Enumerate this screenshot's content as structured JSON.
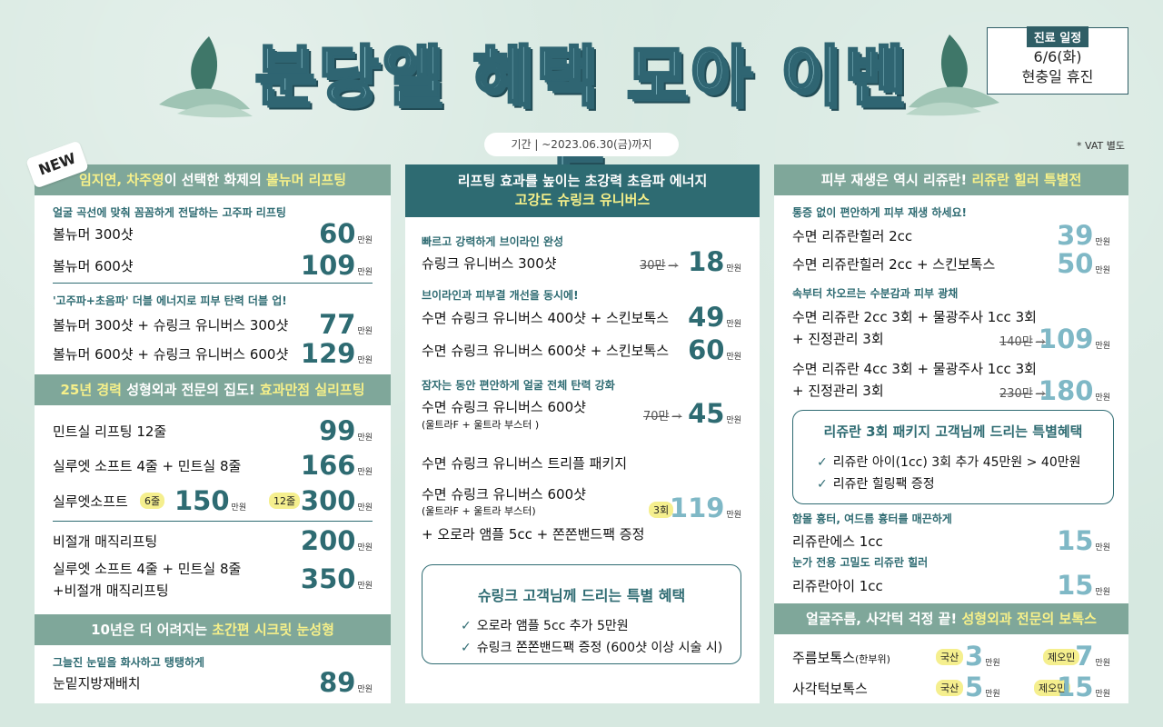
{
  "title": "분당엘 혜택 모아 이벤트",
  "period": "기간  |  ~2023.06.30(금)까지",
  "schedule": {
    "header": "진료 일정",
    "line1": "6/6(화)",
    "line2": "현충일 휴진"
  },
  "vat_note": "* VAT 별도",
  "new_badge": "NEW",
  "unit": "만원",
  "colors": {
    "accent": "#2e6b72",
    "header_bg": "#7fa79a",
    "highlight": "#f6f08a",
    "background": "#d6e8e0"
  },
  "col1": {
    "header1": {
      "a": "임지연, 차주영",
      "b": "이 선택한 화제의 ",
      "c": "볼뉴머 리프팅"
    },
    "sub1": "얼굴 곡선에 맞춰 꼼꼼하게 전달하는 고주파 리프팅",
    "items1": [
      {
        "name": "볼뉴머 300샷",
        "price": "60"
      },
      {
        "name": "볼뉴머 600샷",
        "price": "109"
      }
    ],
    "sub2": "'고주파+초음파' 더블 에너지로 피부 탄력 더블 업!",
    "items2": [
      {
        "name": "볼뉴머 300샷 + 슈링크 유니버스 300샷",
        "price": "77"
      },
      {
        "name": "볼뉴머 600샷 + 슈링크 유니버스 600샷",
        "price": "129"
      }
    ],
    "header2": {
      "a": "25년 경력 ",
      "b": "성형외과 전문의 집도! ",
      "c": "효과만점 실리프팅"
    },
    "items3": [
      {
        "name": "민트실 리프팅 12줄",
        "price": "99"
      },
      {
        "name": "실루엣 소프트 4줄 + 민트실 8줄",
        "price": "166"
      }
    ],
    "silhouette": {
      "name": "실루엣소프트",
      "tag1": "6줄",
      "price1": "150",
      "tag2": "12줄",
      "price2": "300"
    },
    "items4": [
      {
        "name": "비절개 매직리프팅",
        "price": "200"
      }
    ],
    "combo": {
      "line1": "실루엣 소프트 4줄 + 민트실 8줄",
      "line2": "+비절개 매직리프팅",
      "price": "350"
    },
    "header3": {
      "a": "10년은 더 어려지는 ",
      "b": "초간편 시크릿 눈성형"
    },
    "sub3": "그늘진 눈밑을 화사하고 탱탱하게",
    "items5": [
      {
        "name": "눈밑지방재배치",
        "price": "89"
      }
    ]
  },
  "col2": {
    "header_line1": "리프팅 효과를 높이는 초강력 초음파 에너지",
    "header_line2": "고강도 슈링크 유니버스",
    "sub1": "빠르고 강력하게 브이라인 완성",
    "item1": {
      "name": "슈링크 유니버스 300샷",
      "old": "30만",
      "price": "18"
    },
    "sub2": "브이라인과 피부결 개선을 동시에!",
    "item2": {
      "name": "수면  슈링크 유니버스 400샷  +  스킨보톡스",
      "price": "49"
    },
    "item3": {
      "name": "수면  슈링크 유니버스  600샷 +  스킨보톡스",
      "price": "60"
    },
    "sub3": "잠자는 동안 편안하게 얼굴 전체 탄력 강화",
    "item4": {
      "name": "수면  슈링크 유니버스  600샷",
      "note": "(울트라F  + 울트라 부스터 )",
      "old": "70만",
      "price": "45"
    },
    "item5": {
      "name": "수면  슈링크 유니버스  트리플 패키지"
    },
    "item6": {
      "name": "수면 슈링크 유니버스 600샷",
      "note": "(울트라F  + 울트라 부스터)",
      "extra": "+ 오로라  앰플  5cc +  쫀쫀밴드팩  증정",
      "tag": "3회",
      "price": "119"
    },
    "box": {
      "title": "슈링크 고객님께 드리는 특별 혜택",
      "lines": [
        "오로라  앰플  5cc 추가  5만원",
        "슈링크 쫀쫀밴드팩 증정 (600샷 이상 시술 시)"
      ]
    }
  },
  "col3": {
    "header1": {
      "a": "피부 재생은 역시 리쥬란! ",
      "b": "리쥬란 힐러 특별전"
    },
    "sub1": "통증 없이 편안하게 피부 재생 하세요!",
    "items1": [
      {
        "name": "수면 리쥬란힐러 2cc",
        "price": "39"
      },
      {
        "name": "수면 리쥬란힐러 2cc + 스킨보톡스",
        "price": "50"
      }
    ],
    "sub2": "속부터 차오르는 수분감과 피부 광채",
    "pkg1": {
      "line1": "수면 리쥬란 2cc 3회 + 물광주사  1cc 3회",
      "line2": "+ 진정관리 3회",
      "old": "140만",
      "price": "109"
    },
    "pkg2": {
      "line1": "수면 리쥬란 4cc 3회 + 물광주사  1cc 3회",
      "line2": "+ 진정관리 3회",
      "old": "230만",
      "price": "180"
    },
    "box": {
      "title": "리쥬란 3회 패키지 고객님께 드리는 특별혜택",
      "lines": [
        "리쥬란 아이(1cc) 3회 추가  45만원 > 40만원",
        "리쥬란 힐링팩 증정"
      ]
    },
    "sub3": "함몰 흉터, 여드름 흉터를 매끈하게",
    "item_s": {
      "name": "리쥬란에스 1cc",
      "price": "15"
    },
    "sub4": "눈가 전용 고밀도 리쥬란 힐러",
    "item_e": {
      "name": "리쥬란아이 1cc",
      "price": "15"
    },
    "header2": {
      "a": "얼굴주름, 사각턱 걱정  끝! ",
      "b": "성형외과 전문의 보톡스"
    },
    "botox": [
      {
        "name": "주름보톡스",
        "note": "(한부위)",
        "tag1": "국산",
        "price1": "3",
        "tag2": "제오민",
        "price2": "7"
      },
      {
        "name": "사각턱보톡스",
        "note": "",
        "tag1": "국산",
        "price1": "5",
        "tag2": "제오민",
        "price2": "15"
      }
    ]
  }
}
